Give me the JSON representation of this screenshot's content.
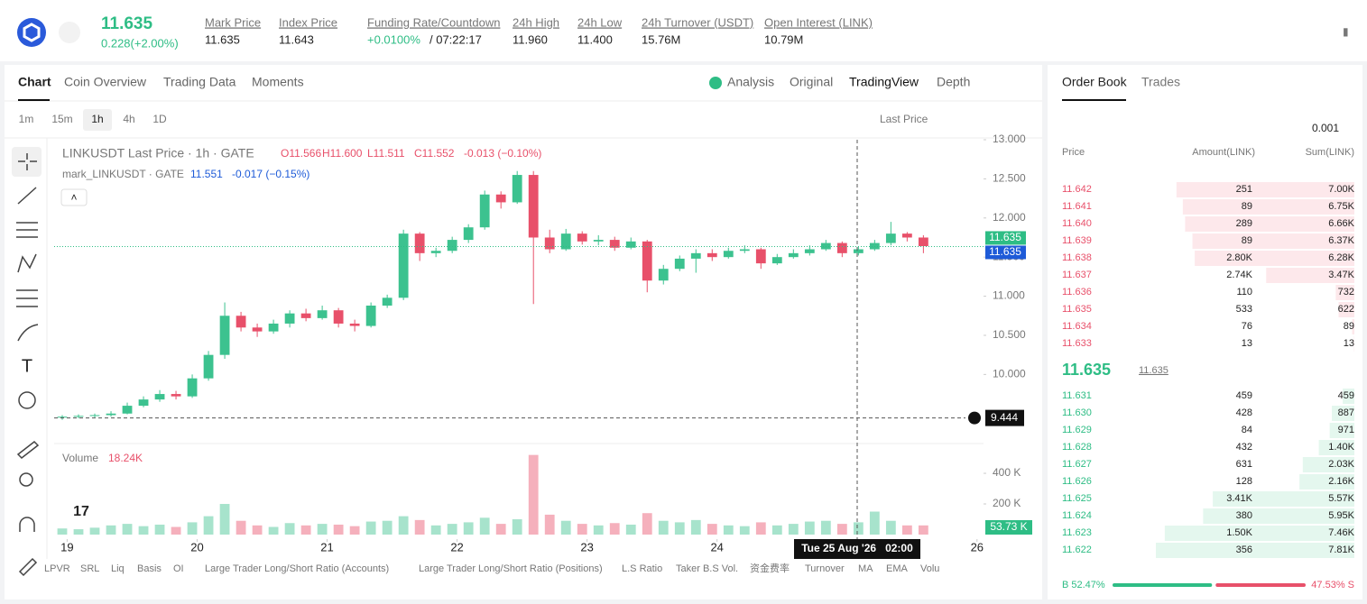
{
  "header": {
    "price": "11.635",
    "change": "0.228(+2.00%)",
    "stats": [
      {
        "label": "Mark Price",
        "value": "11.635"
      },
      {
        "label": "Index Price",
        "value": "11.643"
      },
      {
        "label": "Funding Rate/Countdown",
        "value": "+0.0100%",
        "extra": "/ 07:22:17"
      },
      {
        "label": "24h High",
        "value": "11.960"
      },
      {
        "label": "24h Low",
        "value": "11.400"
      },
      {
        "label": "24h Turnover (USDT)",
        "value": "15.76M"
      },
      {
        "label": "Open Interest (LINK)",
        "value": "10.79M"
      }
    ]
  },
  "tabs": [
    "Chart",
    "Coin Overview",
    "Trading Data",
    "Moments"
  ],
  "views": [
    "Analysis",
    "Original",
    "TradingView",
    "Depth"
  ],
  "intervals": [
    "1m",
    "15m",
    "1h",
    "4h",
    "1D"
  ],
  "price_type": "Last Price",
  "legend": {
    "symbol": "LINKUSDT Last Price · 1h · GATE",
    "open": "O11.566",
    "high": "H11.600",
    "low": "L11.511",
    "close": "C11.552",
    "change": "-0.013 (−0.10%)",
    "mark": "mark_LINKUSDT · GATE",
    "mark_value": "11.551",
    "mark_change": "-0.017 (−0.15%)",
    "volume": "Volume",
    "volume_value": "18.24K"
  },
  "crosshair_time": "Tue 25 Aug '26   02:00",
  "indicators": [
    "LPVR",
    "SRL",
    "Liq",
    "Basis",
    "OI",
    "Large Trader Long/Short Ratio (Accounts)",
    "Large Trader Long/Short Ratio (Positions)",
    "L.S Ratio",
    "Taker B.S Vol.",
    "资金费率",
    "Turnover",
    "MA",
    "EMA",
    "Volu"
  ],
  "chart_data": {
    "type": "candlestick",
    "up_color": "#3cc28f",
    "down_color": "#e8506a",
    "xlim": [
      18.9,
      26.05
    ],
    "xticks": [
      19,
      20,
      21,
      22,
      23,
      24,
      26
    ],
    "ylim": [
      9.14,
      13.0
    ],
    "yticks": [
      {
        "value": 10,
        "label": "10.000"
      },
      {
        "value": 10.5,
        "label": "10.500"
      },
      {
        "value": 11,
        "label": "11.000"
      },
      {
        "value": 11.5,
        "label": "11.500"
      },
      {
        "value": 12,
        "label": "12.000"
      },
      {
        "value": 12.5,
        "label": "12.500"
      },
      {
        "value": 13,
        "label": "13.000"
      }
    ],
    "last_price": {
      "value": 11.635,
      "label": "11.635"
    },
    "mark_price": {
      "value": 11.635,
      "label": "11.635"
    },
    "crosshair_price": {
      "value": 9.444,
      "label": "9.444"
    },
    "candles": [
      [
        9.45,
        9.48,
        9.42,
        9.46
      ],
      [
        9.46,
        9.49,
        9.44,
        9.47
      ],
      [
        9.47,
        9.5,
        9.45,
        9.48
      ],
      [
        9.48,
        9.53,
        9.46,
        9.5
      ],
      [
        9.5,
        9.64,
        9.49,
        9.6
      ],
      [
        9.6,
        9.72,
        9.58,
        9.68
      ],
      [
        9.68,
        9.8,
        9.65,
        9.75
      ],
      [
        9.75,
        9.79,
        9.68,
        9.72
      ],
      [
        9.72,
        10.0,
        9.7,
        9.95
      ],
      [
        9.95,
        10.3,
        9.92,
        10.25
      ],
      [
        10.25,
        10.92,
        10.2,
        10.75
      ],
      [
        10.75,
        10.8,
        10.55,
        10.6
      ],
      [
        10.6,
        10.65,
        10.48,
        10.55
      ],
      [
        10.55,
        10.7,
        10.52,
        10.65
      ],
      [
        10.65,
        10.82,
        10.6,
        10.78
      ],
      [
        10.78,
        10.84,
        10.68,
        10.72
      ],
      [
        10.72,
        10.88,
        10.7,
        10.82
      ],
      [
        10.82,
        10.85,
        10.6,
        10.65
      ],
      [
        10.65,
        10.7,
        10.55,
        10.62
      ],
      [
        10.62,
        10.92,
        10.6,
        10.88
      ],
      [
        10.88,
        11.02,
        10.85,
        10.98
      ],
      [
        10.98,
        11.85,
        10.95,
        11.8
      ],
      [
        11.8,
        11.82,
        11.45,
        11.55
      ],
      [
        11.55,
        11.62,
        11.5,
        11.58
      ],
      [
        11.58,
        11.76,
        11.55,
        11.72
      ],
      [
        11.72,
        11.92,
        11.68,
        11.88
      ],
      [
        11.88,
        12.35,
        11.85,
        12.3
      ],
      [
        12.3,
        12.34,
        12.12,
        12.2
      ],
      [
        12.2,
        12.6,
        12.18,
        12.55
      ],
      [
        12.55,
        12.6,
        10.9,
        11.75
      ],
      [
        11.75,
        11.85,
        11.55,
        11.6
      ],
      [
        11.6,
        11.86,
        11.58,
        11.8
      ],
      [
        11.8,
        11.83,
        11.66,
        11.7
      ],
      [
        11.7,
        11.78,
        11.65,
        11.72
      ],
      [
        11.72,
        11.76,
        11.58,
        11.62
      ],
      [
        11.62,
        11.75,
        11.6,
        11.7
      ],
      [
        11.7,
        11.72,
        11.05,
        11.2
      ],
      [
        11.2,
        11.4,
        11.15,
        11.35
      ],
      [
        11.35,
        11.52,
        11.32,
        11.48
      ],
      [
        11.48,
        11.6,
        11.3,
        11.55
      ],
      [
        11.55,
        11.6,
        11.45,
        11.5
      ],
      [
        11.5,
        11.62,
        11.48,
        11.58
      ],
      [
        11.58,
        11.65,
        11.55,
        11.6
      ],
      [
        11.6,
        11.62,
        11.35,
        11.42
      ],
      [
        11.42,
        11.54,
        11.4,
        11.5
      ],
      [
        11.5,
        11.6,
        11.48,
        11.55
      ],
      [
        11.55,
        11.65,
        11.52,
        11.6
      ],
      [
        11.6,
        11.72,
        11.58,
        11.68
      ],
      [
        11.68,
        11.7,
        11.5,
        11.55
      ],
      [
        11.55,
        11.64,
        11.52,
        11.6
      ],
      [
        11.6,
        11.72,
        11.58,
        11.68
      ],
      [
        11.68,
        11.95,
        11.65,
        11.8
      ],
      [
        11.8,
        11.82,
        11.7,
        11.75
      ],
      [
        11.75,
        11.78,
        11.55,
        11.64
      ]
    ],
    "volume_ylim": [
      0,
      565
    ],
    "volume_yticks": [
      {
        "value": 200,
        "label": "200 K"
      },
      {
        "value": 400,
        "label": "400 K"
      }
    ],
    "volumes": [
      40,
      35,
      45,
      60,
      70,
      55,
      65,
      50,
      80,
      120,
      200,
      90,
      60,
      50,
      75,
      60,
      70,
      65,
      55,
      85,
      90,
      120,
      95,
      60,
      70,
      80,
      110,
      70,
      100,
      520,
      130,
      90,
      70,
      60,
      75,
      65,
      140,
      90,
      80,
      95,
      70,
      60,
      55,
      80,
      60,
      70,
      85,
      90,
      70,
      80,
      150,
      90,
      60,
      60
    ],
    "last_volume": {
      "value": 53.73,
      "label": "53.73 K"
    }
  },
  "order_book": {
    "tabs": [
      "Order Book",
      "Trades"
    ],
    "precision": "0.001",
    "columns": [
      "Price",
      "Amount(LINK)",
      "Sum(LINK)"
    ],
    "asks": [
      [
        "11.642",
        "251",
        {
          "value": 7000,
          "label": "7.00K"
        }
      ],
      [
        "11.641",
        "89",
        {
          "value": 6750,
          "label": "6.75K"
        }
      ],
      [
        "11.640",
        "289",
        {
          "value": 6660,
          "label": "6.66K"
        }
      ],
      [
        "11.639",
        "89",
        {
          "value": 6370,
          "label": "6.37K"
        }
      ],
      [
        "11.638",
        "2.80K",
        {
          "value": 6280,
          "label": "6.28K"
        }
      ],
      [
        "11.637",
        "2.74K",
        {
          "value": 3470,
          "label": "3.47K"
        }
      ],
      [
        "11.636",
        "110",
        {
          "value": 732,
          "label": "732"
        }
      ],
      [
        "11.635",
        "533",
        {
          "value": 622,
          "label": "622"
        }
      ],
      [
        "11.634",
        "76",
        {
          "value": 89,
          "label": "89"
        }
      ],
      [
        "11.633",
        "13",
        {
          "value": 13,
          "label": "13"
        }
      ]
    ],
    "mid": "11.635",
    "mid_mark": "11.635",
    "bids": [
      [
        "11.631",
        "459",
        {
          "value": 459,
          "label": "459"
        }
      ],
      [
        "11.630",
        "428",
        {
          "value": 887,
          "label": "887"
        }
      ],
      [
        "11.629",
        "84",
        {
          "value": 971,
          "label": "971"
        }
      ],
      [
        "11.628",
        "432",
        {
          "value": 1400,
          "label": "1.40K"
        }
      ],
      [
        "11.627",
        "631",
        {
          "value": 2030,
          "label": "2.03K"
        }
      ],
      [
        "11.626",
        "128",
        {
          "value": 2160,
          "label": "2.16K"
        }
      ],
      [
        "11.625",
        "3.41K",
        {
          "value": 5570,
          "label": "5.57K"
        }
      ],
      [
        "11.624",
        "380",
        {
          "value": 5950,
          "label": "5.95K"
        }
      ],
      [
        "11.623",
        "1.50K",
        {
          "value": 7460,
          "label": "7.46K"
        }
      ],
      [
        "11.622",
        "356",
        {
          "value": 7810,
          "label": "7.81K"
        }
      ]
    ],
    "buy_ratio": {
      "value": 52.47,
      "label": "B 52.47%"
    },
    "sell_ratio": {
      "value": 47.53,
      "label": "47.53% S"
    }
  }
}
